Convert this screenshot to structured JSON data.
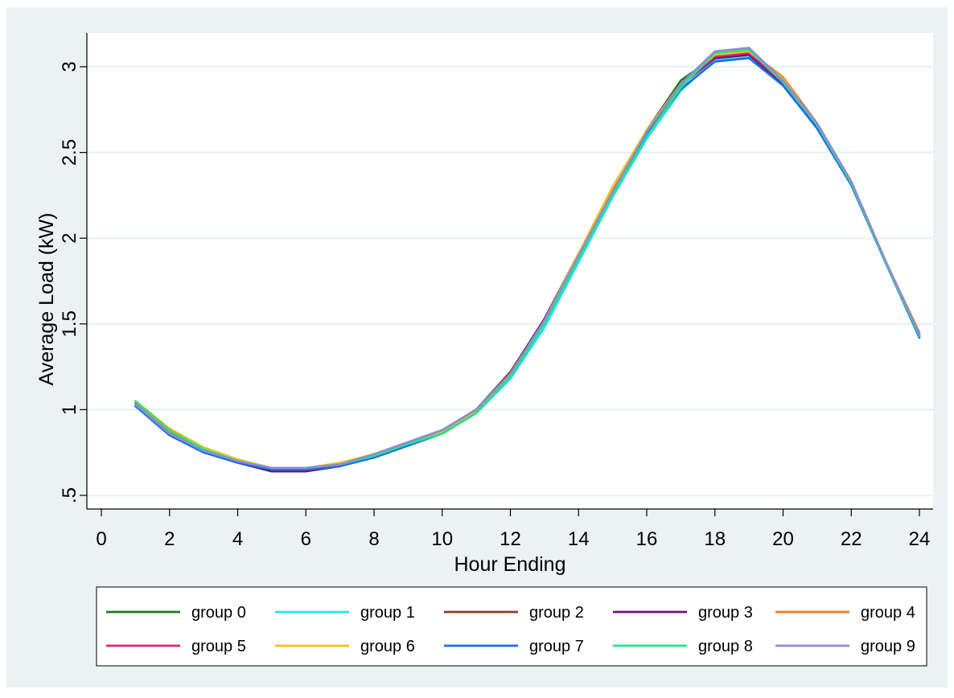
{
  "chart_data": {
    "type": "line",
    "title": "",
    "xlabel": "Hour Ending",
    "ylabel": "Average Load (kW)",
    "xlim": [
      0,
      24
    ],
    "ylim": [
      0.5,
      3.2
    ],
    "x_ticks": [
      0,
      2,
      4,
      6,
      8,
      10,
      12,
      14,
      16,
      18,
      20,
      22,
      24
    ],
    "y_ticks": [
      0.5,
      1,
      1.5,
      2,
      2.5,
      3
    ],
    "x_tick_labels": [
      "0",
      "2",
      "4",
      "6",
      "8",
      "10",
      "12",
      "14",
      "16",
      "18",
      "20",
      "22",
      "24"
    ],
    "y_tick_labels": [
      ".5",
      "1",
      "1.5",
      "2",
      "2.5",
      "3"
    ],
    "grid": true,
    "legend_position": "bottom",
    "x": [
      1,
      2,
      3,
      4,
      5,
      6,
      7,
      8,
      9,
      10,
      11,
      12,
      13,
      14,
      15,
      16,
      17,
      18,
      19,
      20,
      21,
      22,
      23,
      24
    ],
    "series": [
      {
        "name": "group 0",
        "color": "#1a7a1a",
        "values": [
          1.04,
          0.87,
          0.77,
          0.7,
          0.66,
          0.66,
          0.68,
          0.73,
          0.8,
          0.87,
          1.0,
          1.22,
          1.53,
          1.91,
          2.28,
          2.63,
          2.92,
          3.06,
          3.08,
          2.91,
          2.65,
          2.32,
          1.86,
          1.43
        ]
      },
      {
        "name": "group 1",
        "color": "#22e6ee",
        "values": [
          1.03,
          0.86,
          0.76,
          0.69,
          0.65,
          0.65,
          0.68,
          0.73,
          0.79,
          0.86,
          0.98,
          1.18,
          1.48,
          1.86,
          2.24,
          2.58,
          2.86,
          3.04,
          3.06,
          2.9,
          2.65,
          2.32,
          1.86,
          1.43
        ]
      },
      {
        "name": "group 2",
        "color": "#8c3a2a",
        "values": [
          1.03,
          0.87,
          0.77,
          0.7,
          0.65,
          0.65,
          0.68,
          0.74,
          0.81,
          0.88,
          1.0,
          1.22,
          1.52,
          1.9,
          2.27,
          2.62,
          2.9,
          3.05,
          3.07,
          2.91,
          2.65,
          2.32,
          1.86,
          1.43
        ]
      },
      {
        "name": "group 3",
        "color": "#70107a",
        "values": [
          1.03,
          0.86,
          0.76,
          0.69,
          0.64,
          0.64,
          0.67,
          0.73,
          0.81,
          0.88,
          1.0,
          1.21,
          1.53,
          1.9,
          2.27,
          2.61,
          2.89,
          3.05,
          3.07,
          2.9,
          2.64,
          2.31,
          1.86,
          1.42
        ]
      },
      {
        "name": "group 4",
        "color": "#f07a1a",
        "values": [
          1.04,
          0.87,
          0.77,
          0.7,
          0.66,
          0.66,
          0.68,
          0.74,
          0.8,
          0.87,
          0.99,
          1.2,
          1.52,
          1.9,
          2.28,
          2.63,
          2.9,
          3.08,
          3.09,
          2.94,
          2.67,
          2.33,
          1.87,
          1.45
        ]
      },
      {
        "name": "group 5",
        "color": "#e0207a",
        "values": [
          1.03,
          0.86,
          0.76,
          0.69,
          0.65,
          0.65,
          0.68,
          0.73,
          0.8,
          0.87,
          0.99,
          1.2,
          1.51,
          1.89,
          2.26,
          2.61,
          2.89,
          3.06,
          3.08,
          2.91,
          2.65,
          2.32,
          1.86,
          1.43
        ]
      },
      {
        "name": "group 6",
        "color": "#f0c01a",
        "values": [
          1.05,
          0.89,
          0.78,
          0.71,
          0.66,
          0.66,
          0.69,
          0.74,
          0.81,
          0.87,
          0.99,
          1.2,
          1.52,
          1.91,
          2.3,
          2.63,
          2.9,
          3.07,
          3.09,
          2.93,
          2.66,
          2.33,
          1.87,
          1.44
        ]
      },
      {
        "name": "group 7",
        "color": "#1a6ee6",
        "values": [
          1.02,
          0.85,
          0.75,
          0.69,
          0.65,
          0.65,
          0.67,
          0.72,
          0.79,
          0.86,
          0.98,
          1.19,
          1.5,
          1.88,
          2.26,
          2.6,
          2.87,
          3.03,
          3.05,
          2.89,
          2.64,
          2.31,
          1.86,
          1.42
        ]
      },
      {
        "name": "group 8",
        "color": "#22e68a",
        "values": [
          1.05,
          0.88,
          0.77,
          0.7,
          0.66,
          0.66,
          0.68,
          0.73,
          0.8,
          0.86,
          0.98,
          1.19,
          1.5,
          1.88,
          2.25,
          2.59,
          2.88,
          3.08,
          3.1,
          2.91,
          2.66,
          2.32,
          1.86,
          1.43
        ]
      },
      {
        "name": "group 9",
        "color": "#8c8cd6",
        "values": [
          1.03,
          0.86,
          0.76,
          0.7,
          0.66,
          0.66,
          0.68,
          0.74,
          0.81,
          0.88,
          1.0,
          1.21,
          1.52,
          1.9,
          2.27,
          2.62,
          2.9,
          3.09,
          3.11,
          2.92,
          2.67,
          2.33,
          1.87,
          1.44
        ]
      }
    ]
  },
  "colors": {
    "background_outer": "#eaf2f3",
    "plot_background": "#ffffff",
    "gridline": "#eaf2f3",
    "legend_background": "#ffffff"
  }
}
